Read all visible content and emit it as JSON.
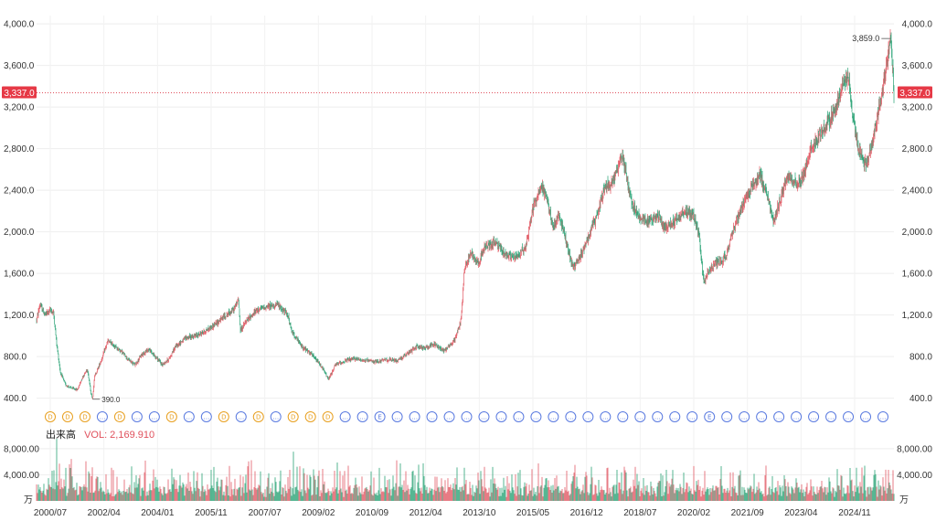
{
  "chart_data": {
    "type": "candlestick",
    "price_axis": {
      "ticks": [
        400,
        800,
        1200,
        1600,
        2000,
        2400,
        2800,
        3200,
        3600,
        4000
      ],
      "tick_labels": [
        "400.0",
        "800.0",
        "1,200.0",
        "1,600.0",
        "2,000.0",
        "2,400.0",
        "2,800.0",
        "3,200.0",
        "3,600.0",
        "4,000.0"
      ],
      "range": [
        300,
        4080
      ]
    },
    "volume_axis": {
      "ticks": [
        4000,
        8000
      ],
      "tick_labels": [
        "4,000.00",
        "8,000.00"
      ],
      "unit": "万",
      "range": [
        0,
        9800
      ]
    },
    "x_axis": {
      "tick_labels": [
        "2000/07",
        "2002/04",
        "2004/01",
        "2005/11",
        "2007/07",
        "2009/02",
        "2010/09",
        "2012/04",
        "2013/10",
        "2015/05",
        "2016/12",
        "2018/07",
        "2020/02",
        "2021/09",
        "2023/04",
        "2024/11"
      ],
      "start_year": 2000.5,
      "end_year": 2025.75
    },
    "price_series": [
      [
        2000.5,
        1150
      ],
      [
        2000.6,
        1300
      ],
      [
        2000.75,
        1200
      ],
      [
        2000.9,
        1250
      ],
      [
        2001.0,
        1220
      ],
      [
        2001.1,
        900
      ],
      [
        2001.2,
        650
      ],
      [
        2001.35,
        530
      ],
      [
        2001.5,
        500
      ],
      [
        2001.7,
        480
      ],
      [
        2001.85,
        600
      ],
      [
        2002.0,
        680
      ],
      [
        2002.1,
        450
      ],
      [
        2002.15,
        390
      ],
      [
        2002.2,
        600
      ],
      [
        2002.4,
        760
      ],
      [
        2002.6,
        950
      ],
      [
        2002.8,
        900
      ],
      [
        2003.0,
        850
      ],
      [
        2003.2,
        770
      ],
      [
        2003.4,
        720
      ],
      [
        2003.6,
        820
      ],
      [
        2003.8,
        870
      ],
      [
        2004.0,
        800
      ],
      [
        2004.2,
        720
      ],
      [
        2004.4,
        780
      ],
      [
        2004.6,
        900
      ],
      [
        2004.9,
        980
      ],
      [
        2005.2,
        1000
      ],
      [
        2005.5,
        1050
      ],
      [
        2005.8,
        1120
      ],
      [
        2006.0,
        1180
      ],
      [
        2006.3,
        1250
      ],
      [
        2006.45,
        1350
      ],
      [
        2006.5,
        1050
      ],
      [
        2006.7,
        1150
      ],
      [
        2007.0,
        1250
      ],
      [
        2007.3,
        1280
      ],
      [
        2007.6,
        1300
      ],
      [
        2007.9,
        1200
      ],
      [
        2008.0,
        1050
      ],
      [
        2008.3,
        900
      ],
      [
        2008.6,
        820
      ],
      [
        2008.9,
        700
      ],
      [
        2009.1,
        580
      ],
      [
        2009.3,
        720
      ],
      [
        2009.6,
        760
      ],
      [
        2009.9,
        780
      ],
      [
        2010.2,
        760
      ],
      [
        2010.5,
        750
      ],
      [
        2010.8,
        770
      ],
      [
        2011.1,
        760
      ],
      [
        2011.4,
        820
      ],
      [
        2011.7,
        900
      ],
      [
        2011.9,
        880
      ],
      [
        2012.2,
        920
      ],
      [
        2012.5,
        860
      ],
      [
        2012.8,
        950
      ],
      [
        2013.0,
        1150
      ],
      [
        2013.1,
        1650
      ],
      [
        2013.3,
        1800
      ],
      [
        2013.5,
        1700
      ],
      [
        2013.7,
        1850
      ],
      [
        2014.0,
        1900
      ],
      [
        2014.3,
        1780
      ],
      [
        2014.6,
        1750
      ],
      [
        2014.9,
        1850
      ],
      [
        2015.1,
        2200
      ],
      [
        2015.35,
        2450
      ],
      [
        2015.5,
        2350
      ],
      [
        2015.7,
        2050
      ],
      [
        2015.9,
        2150
      ],
      [
        2016.1,
        1900
      ],
      [
        2016.3,
        1650
      ],
      [
        2016.5,
        1750
      ],
      [
        2016.8,
        2000
      ],
      [
        2017.0,
        2150
      ],
      [
        2017.2,
        2400
      ],
      [
        2017.5,
        2500
      ],
      [
        2017.75,
        2750
      ],
      [
        2017.9,
        2500
      ],
      [
        2018.0,
        2300
      ],
      [
        2018.2,
        2150
      ],
      [
        2018.5,
        2100
      ],
      [
        2018.8,
        2150
      ],
      [
        2019.0,
        2050
      ],
      [
        2019.3,
        2100
      ],
      [
        2019.6,
        2200
      ],
      [
        2019.85,
        2150
      ],
      [
        2020.0,
        2000
      ],
      [
        2020.15,
        1500
      ],
      [
        2020.25,
        1600
      ],
      [
        2020.5,
        1700
      ],
      [
        2020.8,
        1750
      ],
      [
        2021.0,
        2000
      ],
      [
        2021.3,
        2250
      ],
      [
        2021.5,
        2400
      ],
      [
        2021.8,
        2550
      ],
      [
        2022.0,
        2350
      ],
      [
        2022.2,
        2100
      ],
      [
        2022.4,
        2300
      ],
      [
        2022.6,
        2550
      ],
      [
        2022.9,
        2450
      ],
      [
        2023.1,
        2550
      ],
      [
        2023.3,
        2800
      ],
      [
        2023.6,
        2950
      ],
      [
        2023.9,
        3100
      ],
      [
        2024.2,
        3350
      ],
      [
        2024.4,
        3500
      ],
      [
        2024.55,
        3100
      ],
      [
        2024.7,
        2800
      ],
      [
        2024.9,
        2650
      ],
      [
        2025.0,
        2700
      ],
      [
        2025.2,
        3000
      ],
      [
        2025.4,
        3350
      ],
      [
        2025.55,
        3600
      ],
      [
        2025.65,
        3859
      ],
      [
        2025.75,
        3337
      ]
    ],
    "last_price": 3337,
    "last_price_label": "3,337.0",
    "high_label": "3,859.0",
    "low_label": "390.0",
    "event_markers": [
      "D",
      "D",
      "D",
      "…",
      "D",
      "…",
      "…",
      "D",
      "…",
      "…",
      "D",
      "…",
      "D",
      "…",
      "D",
      "D",
      "D",
      "…",
      "…",
      "E",
      "…",
      "…",
      "…",
      "…",
      "…",
      "…",
      "…",
      "…",
      "…",
      "…",
      "…",
      "…",
      "…",
      "…",
      "…",
      "…",
      "…",
      "…",
      "E",
      "…",
      "…",
      "…",
      "…",
      "…",
      "…",
      "…",
      "…",
      "…",
      "…"
    ],
    "up_color": "#e0505c",
    "down_color": "#1e9e6e",
    "dividend_color": "#e8a020",
    "event_color": "#5b7be0"
  },
  "volume_legend": {
    "title": "出来高",
    "label": "VOL: 2,169.910"
  }
}
